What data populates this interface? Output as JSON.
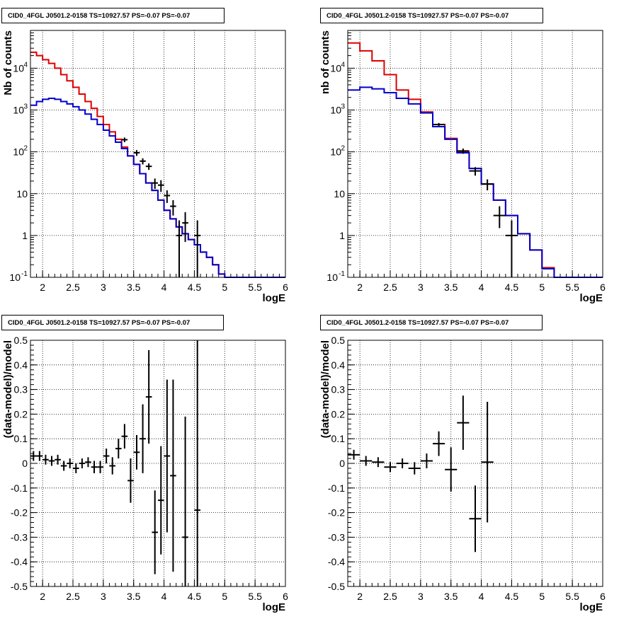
{
  "chart_data": [
    {
      "type": "step-histogram-with-errorbars",
      "title": "CID0_4FGL J0501.2-0158 TS=10927.57 PS=-0.07 PS=-0.07",
      "xlabel": "logE",
      "ylabel": "Nb of counts",
      "xlim": [
        1.8,
        6.0
      ],
      "ylim": [
        0.1,
        80000
      ],
      "yscale": "log",
      "grid": true,
      "xticks": [
        "2",
        "2.5",
        "3",
        "3.5",
        "4",
        "4.5",
        "5",
        "5.5",
        "6"
      ],
      "yticks": [
        "10",
        "1",
        "10^2",
        "10^3",
        "10^4",
        "10^-1"
      ],
      "bin_edges": [
        1.8,
        1.9,
        2.0,
        2.1,
        2.2,
        2.3,
        2.4,
        2.5,
        2.6,
        2.7,
        2.8,
        2.9,
        3.0,
        3.1,
        3.2,
        3.3,
        3.4,
        3.5,
        3.6,
        3.7,
        3.8,
        3.9,
        4.0,
        4.1,
        4.2,
        4.3,
        4.4,
        4.5,
        4.6,
        4.7,
        4.8,
        4.9,
        5.0,
        5.1,
        5.2,
        5.3,
        5.4,
        5.5,
        5.6,
        5.7,
        5.8,
        5.9,
        6.0
      ],
      "series": [
        {
          "color": "#dd0000",
          "values": [
            24000,
            20000,
            16000,
            13000,
            10000,
            7000,
            5000,
            3500,
            2400,
            1600,
            1100,
            700,
            450,
            300,
            200,
            130,
            80,
            50,
            30,
            18,
            12,
            7,
            4,
            2.5,
            1.6,
            1.1,
            0.8,
            0.6,
            0.4,
            0.3,
            0.2,
            0.12,
            0.1,
            0.1,
            0.1,
            0.1,
            0.1,
            0.1,
            0.1,
            0.1,
            0.1,
            0.1
          ]
        },
        {
          "color": "#0000cc",
          "values": [
            1300,
            1600,
            1800,
            1900,
            1800,
            1600,
            1400,
            1200,
            1000,
            800,
            600,
            450,
            330,
            240,
            170,
            120,
            80,
            50,
            30,
            18,
            12,
            7,
            4,
            2.5,
            1.6,
            1.1,
            0.8,
            0.6,
            0.4,
            0.3,
            0.2,
            0.12,
            0.1,
            0.1,
            0.1,
            0.1,
            0.1,
            0.1,
            0.1,
            0.1,
            0.1,
            0.1
          ]
        }
      ],
      "data_points": [
        {
          "x": 3.35,
          "y": 195,
          "err": [
            25,
            25
          ]
        },
        {
          "x": 3.55,
          "y": 95,
          "err": [
            15,
            15
          ]
        },
        {
          "x": 3.65,
          "y": 60,
          "err": [
            10,
            10
          ]
        },
        {
          "x": 3.75,
          "y": 45,
          "err": [
            8,
            8
          ]
        },
        {
          "x": 3.85,
          "y": 18,
          "err": [
            5,
            5
          ]
        },
        {
          "x": 3.95,
          "y": 16,
          "err": [
            5,
            5
          ]
        },
        {
          "x": 4.05,
          "y": 9,
          "err": [
            3,
            3
          ]
        },
        {
          "x": 4.15,
          "y": 5,
          "err": [
            2,
            2
          ]
        },
        {
          "x": 4.25,
          "y": 1,
          "err": [
            0.9,
            1.3
          ]
        },
        {
          "x": 4.35,
          "y": 2,
          "err": [
            1.3,
            1.6
          ]
        },
        {
          "x": 4.55,
          "y": 1,
          "err": [
            0.9,
            1.3
          ]
        }
      ]
    },
    {
      "type": "step-histogram-with-errorbars",
      "title": "CID0_4FGL J0501.2-0158 TS=10927.57 PS=-0.07 PS=-0.07",
      "xlabel": "logE",
      "ylabel": "nb of counts",
      "xlim": [
        1.8,
        6.0
      ],
      "ylim": [
        0.1,
        80000
      ],
      "yscale": "log",
      "grid": true,
      "xticks": [
        "2",
        "2.5",
        "3",
        "3.5",
        "4",
        "4.5",
        "5",
        "5.5",
        "6"
      ],
      "yticks": [
        "10",
        "1",
        "10^2",
        "10^3",
        "10^4",
        "10^-1"
      ],
      "bin_edges": [
        1.8,
        2.0,
        2.2,
        2.4,
        2.6,
        2.8,
        3.0,
        3.2,
        3.4,
        3.6,
        3.8,
        4.0,
        4.2,
        4.4,
        4.6,
        4.8,
        5.0,
        5.2,
        5.4,
        5.6,
        5.8,
        6.0
      ],
      "series": [
        {
          "color": "#dd0000",
          "values": [
            40000,
            26000,
            15000,
            7000,
            3000,
            1800,
            900,
            450,
            210,
            100,
            40,
            17,
            7,
            3,
            1.1,
            0.45,
            0.17,
            0.1,
            0.1,
            0.1,
            0.1
          ]
        },
        {
          "color": "#0000cc",
          "values": [
            3000,
            3500,
            3200,
            2600,
            1900,
            1400,
            850,
            400,
            200,
            95,
            40,
            17,
            7,
            3,
            1.1,
            0.45,
            0.16,
            0.1,
            0.1,
            0.1,
            0.1
          ]
        }
      ],
      "data_points": [
        {
          "x": 3.3,
          "y": 450,
          "err": [
            40,
            40
          ]
        },
        {
          "x": 3.7,
          "y": 105,
          "err": [
            15,
            15
          ]
        },
        {
          "x": 3.9,
          "y": 35,
          "err": [
            8,
            8
          ]
        },
        {
          "x": 4.1,
          "y": 17,
          "err": [
            5,
            5
          ]
        },
        {
          "x": 4.3,
          "y": 3,
          "err": [
            1.5,
            2
          ]
        },
        {
          "x": 4.5,
          "y": 1,
          "err": [
            0.9,
            1.3
          ]
        }
      ]
    },
    {
      "type": "scatter-errorbars",
      "title": "CID0_4FGL J0501.2-0158 TS=10927.57 PS=-0.07 PS=-0.07",
      "xlabel": "logE",
      "ylabel": "(data-model)/model",
      "xlim": [
        1.8,
        6.0
      ],
      "ylim": [
        -0.5,
        0.5
      ],
      "grid": true,
      "xticks": [
        "2",
        "2.5",
        "3",
        "3.5",
        "4",
        "4.5",
        "5",
        "5.5",
        "6"
      ],
      "yticks": [
        "-0.5",
        "-0.4",
        "-0.3",
        "-0.2",
        "-0.1",
        "0",
        "0.1",
        "0.2",
        "0.3",
        "0.4",
        "0.5"
      ],
      "points": [
        {
          "x": 1.85,
          "y": 0.03,
          "err": 0.02,
          "hw": 0.05
        },
        {
          "x": 1.95,
          "y": 0.03,
          "err": 0.02,
          "hw": 0.05
        },
        {
          "x": 2.05,
          "y": 0.015,
          "err": 0.02,
          "hw": 0.05
        },
        {
          "x": 2.15,
          "y": 0.01,
          "err": 0.02,
          "hw": 0.05
        },
        {
          "x": 2.25,
          "y": 0.015,
          "err": 0.02,
          "hw": 0.05
        },
        {
          "x": 2.35,
          "y": -0.01,
          "err": 0.02,
          "hw": 0.05
        },
        {
          "x": 2.45,
          "y": 0.0,
          "err": 0.02,
          "hw": 0.05
        },
        {
          "x": 2.55,
          "y": -0.02,
          "err": 0.02,
          "hw": 0.05
        },
        {
          "x": 2.65,
          "y": 0.0,
          "err": 0.02,
          "hw": 0.05
        },
        {
          "x": 2.75,
          "y": 0.005,
          "err": 0.02,
          "hw": 0.05
        },
        {
          "x": 2.85,
          "y": -0.015,
          "err": 0.025,
          "hw": 0.05
        },
        {
          "x": 2.95,
          "y": -0.015,
          "err": 0.025,
          "hw": 0.05
        },
        {
          "x": 3.05,
          "y": 0.03,
          "err": 0.03,
          "hw": 0.05
        },
        {
          "x": 3.15,
          "y": -0.01,
          "err": 0.035,
          "hw": 0.05
        },
        {
          "x": 3.25,
          "y": 0.06,
          "err": 0.04,
          "hw": 0.05
        },
        {
          "x": 3.35,
          "y": 0.11,
          "err": 0.05,
          "hw": 0.05
        },
        {
          "x": 3.45,
          "y": -0.07,
          "err": 0.09,
          "hw": 0.05
        },
        {
          "x": 3.55,
          "y": 0.045,
          "err": 0.07,
          "hw": 0.05
        },
        {
          "x": 3.65,
          "y": 0.1,
          "err": 0.14,
          "hw": 0.05
        },
        {
          "x": 3.75,
          "y": 0.27,
          "err": 0.19,
          "hw": 0.05
        },
        {
          "x": 3.85,
          "y": -0.28,
          "err": 0.17,
          "hw": 0.05
        },
        {
          "x": 3.95,
          "y": -0.15,
          "err": 0.22,
          "hw": 0.05
        },
        {
          "x": 4.05,
          "y": 0.03,
          "err": 0.31,
          "hw": 0.05
        },
        {
          "x": 4.15,
          "y": -0.05,
          "err": 0.39,
          "hw": 0.05
        },
        {
          "x": 4.35,
          "y": -0.3,
          "err": 0.49,
          "hw": 0.05
        },
        {
          "x": 4.55,
          "y": -0.19,
          "err": 0.69,
          "hw": 0.05
        }
      ]
    },
    {
      "type": "scatter-errorbars",
      "title": "CID0_4FGL J0501.2-0158 TS=10927.57 PS=-0.07 PS=-0.07",
      "xlabel": "logE",
      "ylabel": "(data-model)/model",
      "xlim": [
        1.8,
        6.0
      ],
      "ylim": [
        -0.5,
        0.5
      ],
      "grid": true,
      "xticks": [
        "2",
        "2.5",
        "3",
        "3.5",
        "4",
        "4.5",
        "5",
        "5.5",
        "6"
      ],
      "yticks": [
        "-0.5",
        "-0.4",
        "-0.3",
        "-0.2",
        "-0.1",
        "0",
        "0.1",
        "0.2",
        "0.3",
        "0.4",
        "0.5"
      ],
      "points": [
        {
          "x": 1.9,
          "y": 0.035,
          "err": 0.02,
          "hw": 0.1
        },
        {
          "x": 2.1,
          "y": 0.01,
          "err": 0.02,
          "hw": 0.1
        },
        {
          "x": 2.3,
          "y": 0.005,
          "err": 0.02,
          "hw": 0.1
        },
        {
          "x": 2.5,
          "y": -0.015,
          "err": 0.02,
          "hw": 0.1
        },
        {
          "x": 2.7,
          "y": 0.0,
          "err": 0.02,
          "hw": 0.1
        },
        {
          "x": 2.9,
          "y": -0.02,
          "err": 0.025,
          "hw": 0.1
        },
        {
          "x": 3.1,
          "y": 0.01,
          "err": 0.03,
          "hw": 0.1
        },
        {
          "x": 3.3,
          "y": 0.08,
          "err": 0.05,
          "hw": 0.1
        },
        {
          "x": 3.5,
          "y": -0.025,
          "err": 0.09,
          "hw": 0.1
        },
        {
          "x": 3.7,
          "y": 0.165,
          "err": 0.11,
          "hw": 0.1
        },
        {
          "x": 3.9,
          "y": -0.225,
          "err": 0.135,
          "hw": 0.1
        },
        {
          "x": 4.1,
          "y": 0.005,
          "err": 0.245,
          "hw": 0.1
        }
      ]
    }
  ]
}
